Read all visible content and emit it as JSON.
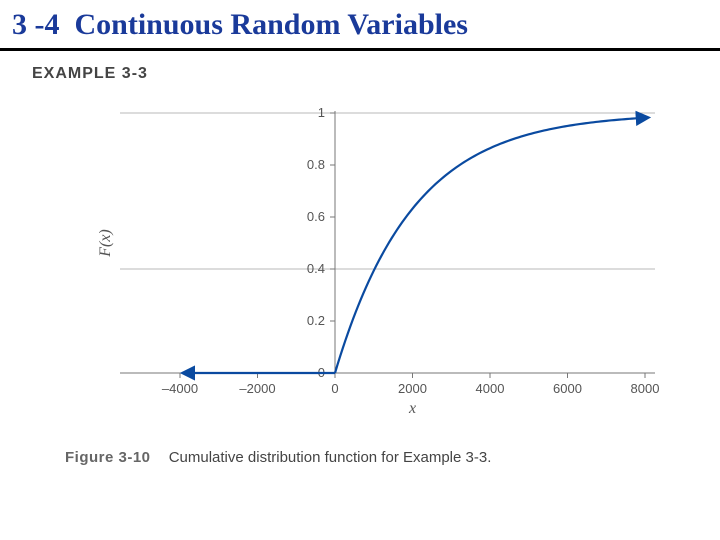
{
  "header": {
    "section_number": "3 -4",
    "section_title": "Continuous Random Variables"
  },
  "example_label": "EXAMPLE 3-3",
  "figure": {
    "label": "Figure 3-10",
    "caption_text": "Cumulative distribution function for Example 3-3."
  },
  "chart": {
    "type": "line",
    "xlabel": "x",
    "ylabel": "F(x)",
    "xlim": [
      -4000,
      8000
    ],
    "ylim": [
      0,
      1
    ],
    "xticks": [
      -4000,
      -2000,
      0,
      2000,
      4000,
      6000,
      8000
    ],
    "xtick_labels": [
      "–4000",
      "–2000",
      "0",
      "2000",
      "4000",
      "6000",
      "8000"
    ],
    "yticks": [
      0,
      0.2,
      0.4,
      0.6,
      0.8,
      1
    ],
    "ytick_labels": [
      "0",
      "0.2",
      "0.4",
      "0.6",
      "0.8",
      "1"
    ],
    "grid_ylines": [
      0.4,
      1
    ],
    "grid_color": "#b8b8b8",
    "axis_color": "#777777",
    "tick_text_color": "#555555",
    "curve_color": "#0a4aa0",
    "curve_width": 2.2,
    "background_color": "#ffffff",
    "lambda": 0.0005,
    "arrow_size": 7
  }
}
